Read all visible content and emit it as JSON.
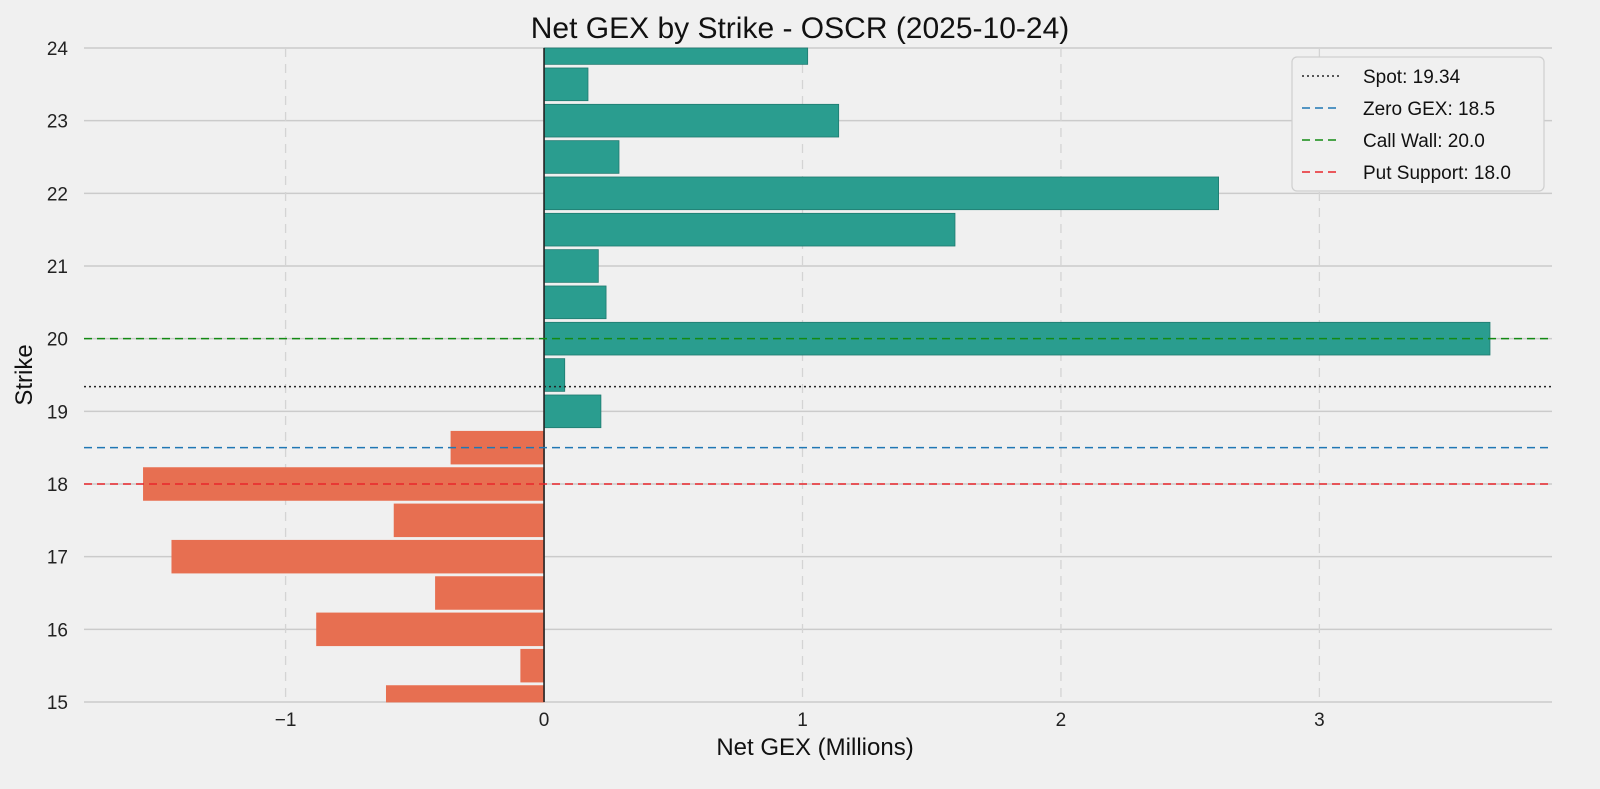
{
  "chart_data": {
    "type": "bar",
    "orientation": "horizontal",
    "title": "Net GEX by Strike - OSCR (2025-10-24)",
    "xlabel": "Net GEX (Millions)",
    "ylabel": "Strike",
    "xlim": [
      -1.78,
      3.9
    ],
    "ylim": [
      15,
      24
    ],
    "xticks": [
      -1,
      0,
      1,
      2,
      3
    ],
    "xtick_labels": [
      "−1",
      "0",
      "1",
      "2",
      "3"
    ],
    "yticks": [
      15,
      16,
      17,
      18,
      19,
      20,
      21,
      22,
      23,
      24
    ],
    "ytick_labels": [
      "15",
      "16",
      "17",
      "18",
      "19",
      "20",
      "21",
      "22",
      "23",
      "24"
    ],
    "grid": true,
    "bar_height": 0.45,
    "strikes": [
      15,
      15.5,
      16,
      16.5,
      17,
      17.5,
      18,
      18.5,
      19,
      19.5,
      20,
      20.5,
      21,
      21.5,
      22,
      22.5,
      23,
      23.5,
      24
    ],
    "values": [
      -0.61,
      -0.09,
      -0.88,
      -0.42,
      -1.44,
      -0.58,
      -1.55,
      -0.36,
      0.22,
      0.08,
      3.66,
      0.24,
      0.21,
      1.59,
      2.61,
      0.29,
      1.14,
      0.17,
      1.02
    ],
    "positive_color": "#2a9d8f",
    "negative_color": "#e76f51",
    "reference_lines": [
      {
        "label": "Spot: 19.34",
        "value": 19.34,
        "color": "#222222",
        "style": "dotted"
      },
      {
        "label": "Zero GEX: 18.5",
        "value": 18.5,
        "color": "#1f77b4",
        "style": "dashed"
      },
      {
        "label": "Call Wall: 20.0",
        "value": 20.0,
        "color": "#138a13",
        "style": "dashed"
      },
      {
        "label": "Put Support: 18.0",
        "value": 18.0,
        "color": "#e8262b",
        "style": "dashed"
      }
    ],
    "legend_position": "top-right"
  }
}
